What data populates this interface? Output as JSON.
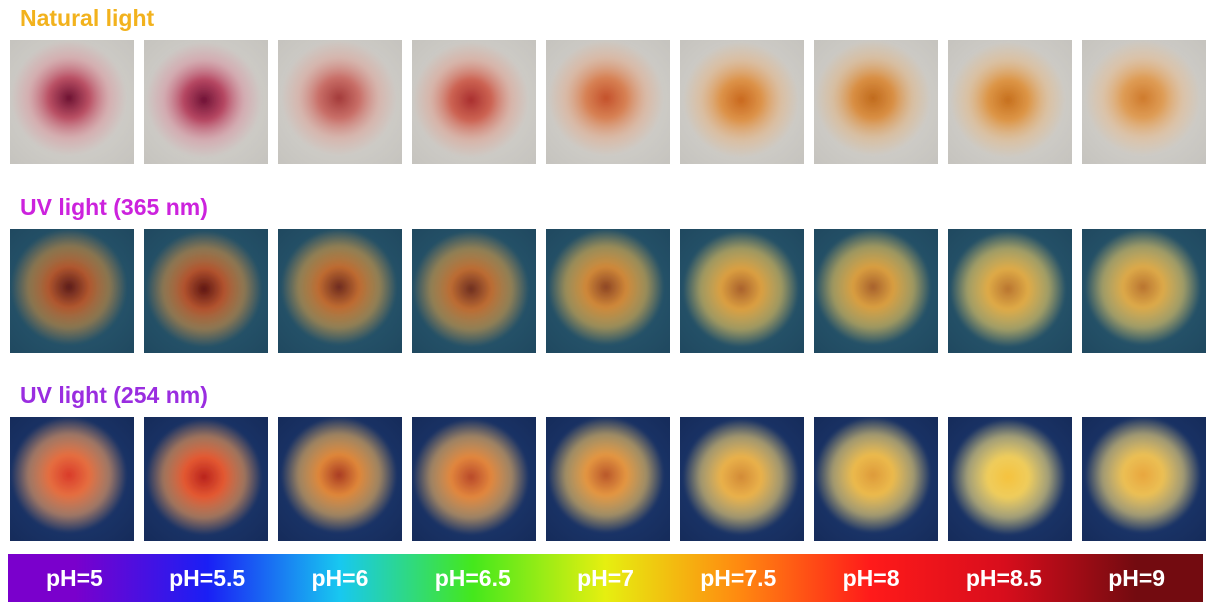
{
  "sections": [
    {
      "title": "Natural light",
      "title_color": "#f2b21d",
      "background": "#d9d7d2",
      "background_edge": "#c4c2bd",
      "spots": [
        {
          "core": "#6c1232",
          "mid": "#b8485e",
          "halo": "#d79aa0"
        },
        {
          "core": "#6f1236",
          "mid": "#b43f5c",
          "halo": "#d596a2"
        },
        {
          "core": "#a33a3a",
          "mid": "#c86962",
          "halo": "#d9a69c"
        },
        {
          "core": "#a92f2f",
          "mid": "#cc5d4c",
          "halo": "#dba394"
        },
        {
          "core": "#c4502a",
          "mid": "#d77d4e",
          "halo": "#deac90"
        },
        {
          "core": "#c9681d",
          "mid": "#dd8f42",
          "halo": "#e0b489"
        },
        {
          "core": "#c06a1c",
          "mid": "#d98b3c",
          "halo": "#dcb488"
        },
        {
          "core": "#c66f1d",
          "mid": "#dd923f",
          "halo": "#e0b88a"
        },
        {
          "core": "#cf7a2c",
          "mid": "#df9a50",
          "halo": "#e2bb93"
        }
      ]
    },
    {
      "title": "UV light (365 nm)",
      "title_color": "#cc22dd",
      "background": "#2b5f76",
      "background_edge": "#1f475e",
      "spots": [
        {
          "core": "#5a1b1a",
          "mid": "#b7562a",
          "halo": "#c98a3e"
        },
        {
          "core": "#5e1513",
          "mid": "#b9522a",
          "halo": "#cf8c40"
        },
        {
          "core": "#6c2a1e",
          "mid": "#c66b2d",
          "halo": "#d69a44"
        },
        {
          "core": "#6d2e20",
          "mid": "#c46c2f",
          "halo": "#d59a46"
        },
        {
          "core": "#8c4424",
          "mid": "#d88a36",
          "halo": "#e4b04c"
        },
        {
          "core": "#a8602c",
          "mid": "#e4a23e",
          "halo": "#edc35a"
        },
        {
          "core": "#a6602c",
          "mid": "#e2a13d",
          "halo": "#ebc259"
        },
        {
          "core": "#b87430",
          "mid": "#e8ae44",
          "halo": "#f0cb62"
        },
        {
          "core": "#b87330",
          "mid": "#e6ad46",
          "halo": "#eec964"
        }
      ]
    },
    {
      "title": "UV light (254 nm)",
      "title_color": "#9a2de0",
      "background": "#1f3f7a",
      "background_edge": "#152a58",
      "spots": [
        {
          "core": "#d93a2a",
          "mid": "#f0703c",
          "halo": "#f4a060"
        },
        {
          "core": "#b8221c",
          "mid": "#ee5a2e",
          "halo": "#f69c52"
        },
        {
          "core": "#a83a22",
          "mid": "#e98a36",
          "halo": "#f3b55a"
        },
        {
          "core": "#b8482a",
          "mid": "#ec8a3a",
          "halo": "#f3b45e"
        },
        {
          "core": "#b8562a",
          "mid": "#ee9a3e",
          "halo": "#f5c460"
        },
        {
          "core": "#d28a36",
          "mid": "#f4b748",
          "halo": "#f8d470"
        },
        {
          "core": "#dd9a3a",
          "mid": "#f6c04a",
          "halo": "#f9d872"
        },
        {
          "core": "#f5c23e",
          "mid": "#fad45a",
          "halo": "#fbe27e"
        },
        {
          "core": "#e8a63e",
          "mid": "#f6c652",
          "halo": "#f9da78"
        }
      ]
    }
  ],
  "ph_scale": [
    {
      "label": "pH=5",
      "color": "#7a00cc"
    },
    {
      "label": "pH=5.5",
      "color": "#1a1ff5"
    },
    {
      "label": "pH=6",
      "color": "#18c8f0"
    },
    {
      "label": "pH=6.5",
      "color": "#44e81c"
    },
    {
      "label": "pH=7",
      "color": "#e6ef10"
    },
    {
      "label": "pH=7.5",
      "color": "#ff8a10"
    },
    {
      "label": "pH=8",
      "color": "#ff1a1a"
    },
    {
      "label": "pH=8.5",
      "color": "#d80d1c"
    },
    {
      "label": "pH=9",
      "color": "#730b10"
    }
  ]
}
